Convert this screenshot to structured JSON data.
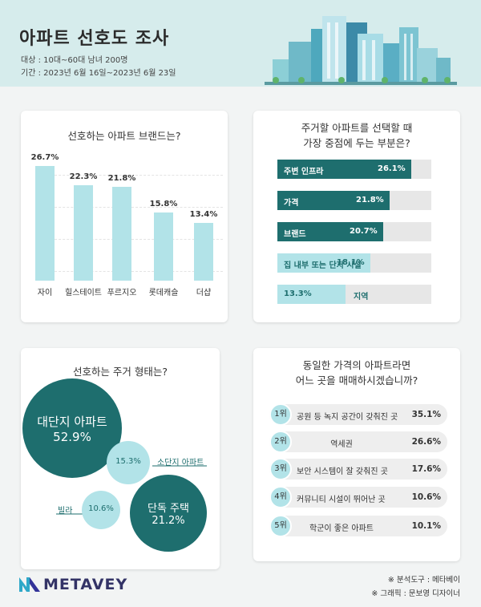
{
  "header": {
    "title": "아파트 선호도 조사",
    "target": "대상 : 10대~60대 남녀 200명",
    "period": "기간 : 2023년 6월 16일~2023년 6월 23일"
  },
  "chart_data": [
    {
      "type": "bar",
      "title": "선호하는 아파트 브랜드는?",
      "categories": [
        "자이",
        "힐스테이트",
        "푸르지오",
        "롯데캐슬",
        "더샵"
      ],
      "values": [
        26.7,
        22.3,
        21.8,
        15.8,
        13.4
      ],
      "labels": [
        "26.7%",
        "22.3%",
        "21.8%",
        "15.8%",
        "13.4%"
      ],
      "ylim": [
        0,
        28
      ],
      "color": "#b2e3e8"
    },
    {
      "type": "bar",
      "orientation": "horizontal",
      "title_lines": [
        "주거할 아파트를 선택할 때",
        "가장 중점에 두는 부분은?"
      ],
      "categories": [
        "주변 인프라",
        "가격",
        "브랜드",
        "집 내부 또는 단지 시설",
        "지역"
      ],
      "values": [
        26.1,
        21.8,
        20.7,
        18.1,
        13.3
      ],
      "labels": [
        "26.1%",
        "21.8%",
        "20.7%",
        "18.1%",
        "13.3%"
      ],
      "xlim": [
        0,
        30
      ],
      "colors": [
        "#1e6e6e",
        "#1e6e6e",
        "#1e6e6e",
        "#b2e3e8",
        "#b2e3e8"
      ]
    },
    {
      "type": "bubble",
      "title": "선호하는 주거 형태는?",
      "categories": [
        "대단지 아파트",
        "소단지 아파트",
        "빌라",
        "단독 주택"
      ],
      "values": [
        52.9,
        15.3,
        10.6,
        21.2
      ],
      "labels": [
        "52.9%",
        "15.3%",
        "10.6%",
        "21.2%"
      ],
      "colors": [
        "#1e6e6e",
        "#b2e3e8",
        "#b2e3e8",
        "#1e6e6e"
      ]
    },
    {
      "type": "table",
      "title_lines": [
        "동일한 가격의 아파트라면",
        "어느 곳을 매매하시겠습니까?"
      ],
      "rows": [
        {
          "rank": "1위",
          "label": "공원 등 녹지 공간이 갖춰진 곳",
          "value": "35.1%"
        },
        {
          "rank": "2위",
          "label": "역세권",
          "value": "26.6%"
        },
        {
          "rank": "3위",
          "label": "보안 시스템이 잘 갖춰진 곳",
          "value": "17.6%"
        },
        {
          "rank": "4위",
          "label": "커뮤니티 시설이 뛰어난 곳",
          "value": "10.6%"
        },
        {
          "rank": "5위",
          "label": "학군이 좋은 아파트",
          "value": "10.1%"
        }
      ]
    }
  ],
  "footer": {
    "logo": "METAVEY",
    "analysis_tool": "※ 분석도구 : 메타베이",
    "graphic": "※ 그래픽 : 문보영 디자이너"
  },
  "colors": {
    "dark_teal": "#1e6e6e",
    "light_teal": "#b2e3e8",
    "header_bg": "#d6ecec",
    "logo_navy": "#333366"
  }
}
